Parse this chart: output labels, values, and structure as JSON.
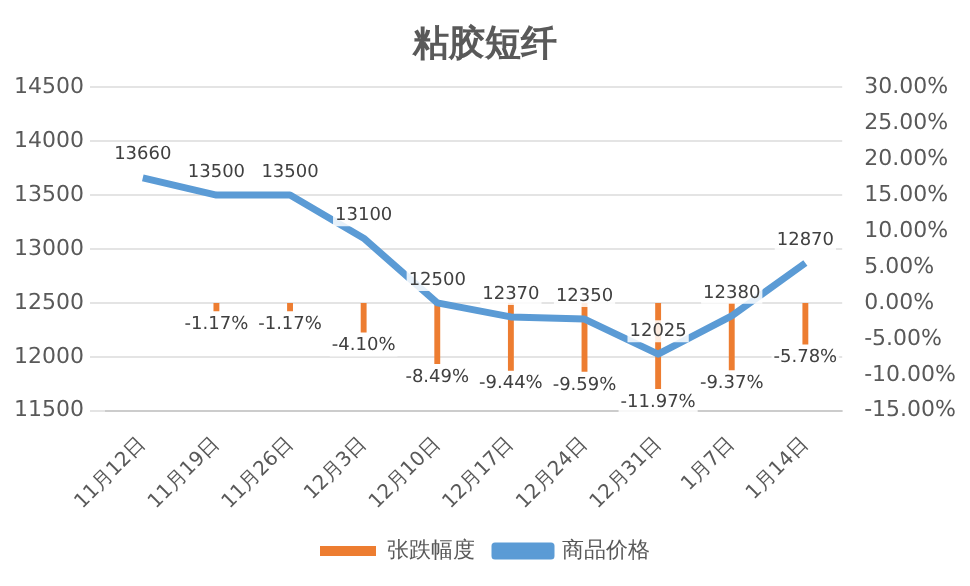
{
  "chart_data": {
    "type": "bar",
    "title": "粘胶短纤",
    "categories": [
      "11月12日",
      "11月19日",
      "11月26日",
      "12月3日",
      "12月10日",
      "12月17日",
      "12月24日",
      "12月31日",
      "1月7日",
      "1月14日"
    ],
    "series": [
      {
        "name": "张跌幅度",
        "axis": "y2",
        "color": "#ed7d31",
        "values": [
          null,
          -1.17,
          -1.17,
          -4.1,
          -8.49,
          -9.44,
          -9.59,
          -11.97,
          -9.37,
          -5.78
        ],
        "value_labels": [
          null,
          "-1.17%",
          "-1.17%",
          "-4.10%",
          "-8.49%",
          "-9.44%",
          "-9.59%",
          "-11.97%",
          "-9.37%",
          "-5.78%"
        ]
      },
      {
        "name": "商品价格",
        "type": "line",
        "color": "#5b9bd5",
        "values": [
          13660,
          13500,
          13500,
          13100,
          12500,
          12370,
          12350,
          12025,
          12380,
          12870
        ],
        "value_labels": [
          "13660",
          "13500",
          "13500",
          "13100",
          "12500",
          "12370",
          "12350",
          "12025",
          "12380",
          "12870"
        ]
      }
    ],
    "ylim": [
      11500,
      14500
    ],
    "yticks": [
      11500,
      12000,
      12500,
      13000,
      13500,
      14000,
      14500
    ],
    "y2lim": [
      -15,
      30
    ],
    "y2ticks": [
      {
        "value": -15,
        "label": "-15.00%"
      },
      {
        "value": -10,
        "label": "-10.00%"
      },
      {
        "value": -5,
        "label": "-5.00%"
      },
      {
        "value": 0,
        "label": "0.00%"
      },
      {
        "value": 5,
        "label": "5.00%"
      },
      {
        "value": 10,
        "label": "10.00%"
      },
      {
        "value": 15,
        "label": "15.00%"
      },
      {
        "value": 20,
        "label": "20.00%"
      },
      {
        "value": 25,
        "label": "25.00%"
      },
      {
        "value": 30,
        "label": "30.00%"
      }
    ],
    "grid": "y",
    "legend": "bottom",
    "marker": "none"
  }
}
